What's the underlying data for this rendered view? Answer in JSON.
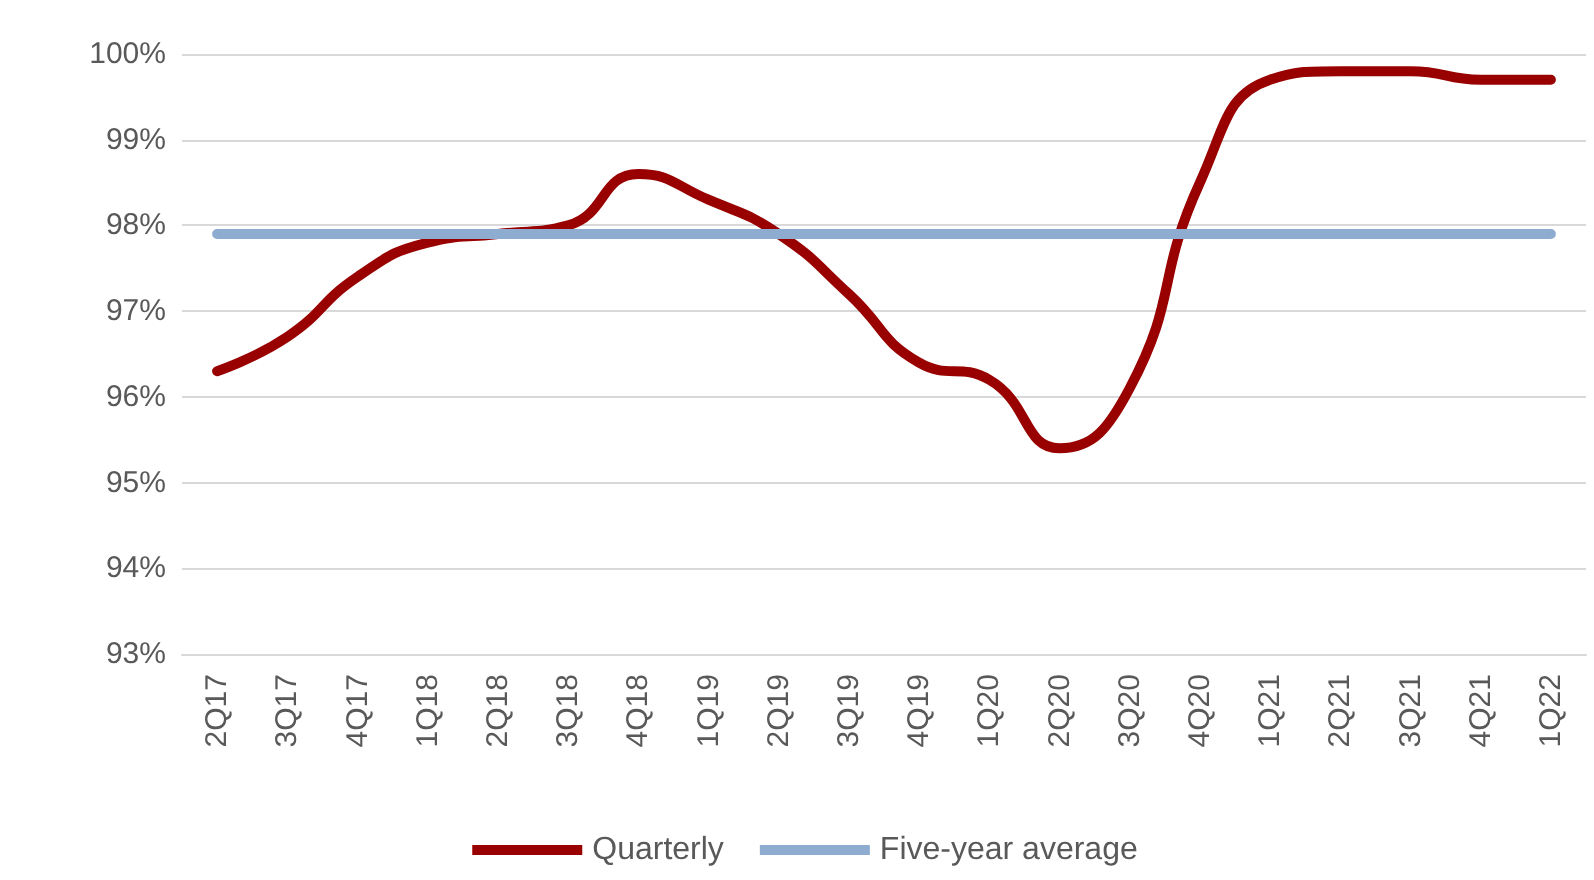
{
  "chart_data": {
    "type": "line",
    "categories": [
      "2Q17",
      "3Q17",
      "4Q17",
      "1Q18",
      "2Q18",
      "3Q18",
      "4Q18",
      "1Q19",
      "2Q19",
      "3Q19",
      "4Q19",
      "1Q20",
      "2Q20",
      "3Q20",
      "4Q20",
      "1Q21",
      "2Q21",
      "3Q21",
      "4Q21",
      "1Q22"
    ],
    "series": [
      {
        "name": "Quarterly",
        "color": "#990000",
        "values": [
          96.3,
          96.7,
          97.4,
          97.8,
          97.9,
          98.0,
          98.6,
          98.3,
          97.9,
          97.2,
          96.4,
          96.2,
          95.4,
          96.1,
          98.5,
          99.7,
          99.8,
          99.8,
          99.7,
          99.7
        ]
      },
      {
        "name": "Five-year average",
        "color": "#8eaccf",
        "values": [
          97.9,
          97.9,
          97.9,
          97.9,
          97.9,
          97.9,
          97.9,
          97.9,
          97.9,
          97.9,
          97.9,
          97.9,
          97.9,
          97.9,
          97.9,
          97.9,
          97.9,
          97.9,
          97.9,
          97.9
        ]
      }
    ],
    "ylim": [
      93,
      100
    ],
    "yticks": [
      {
        "value": 93,
        "label": "93%"
      },
      {
        "value": 94,
        "label": "94%"
      },
      {
        "value": 95,
        "label": "95%"
      },
      {
        "value": 96,
        "label": "96%"
      },
      {
        "value": 97,
        "label": "97%"
      },
      {
        "value": 98,
        "label": "98%"
      },
      {
        "value": 99,
        "label": "99%"
      },
      {
        "value": 100,
        "label": "100%"
      }
    ],
    "grid": "y",
    "legend": "bottom",
    "marker": "none",
    "line_style": "solid"
  }
}
